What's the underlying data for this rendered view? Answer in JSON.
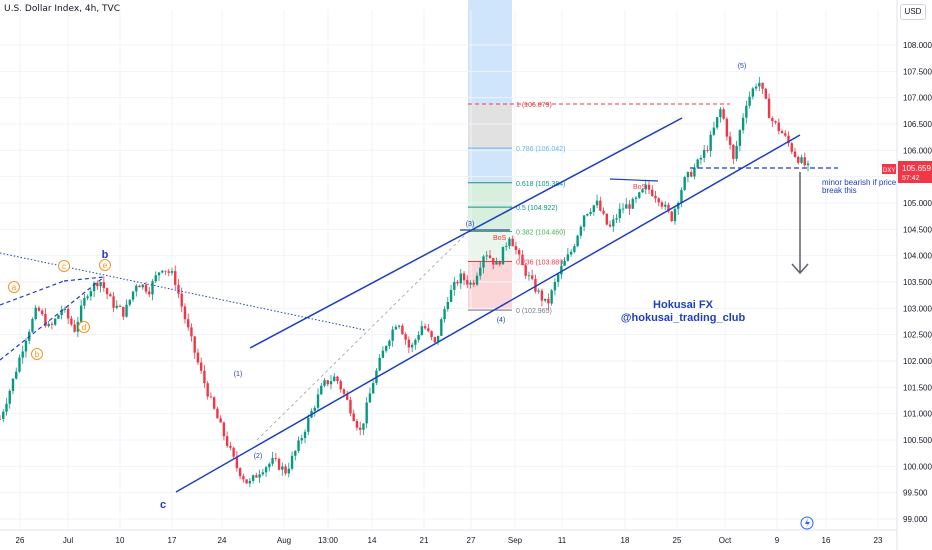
{
  "header": {
    "title": "U.S. Dollar Index, 4h, TVC",
    "currency_button": "USD"
  },
  "chart_data": {
    "type": "candlestick",
    "title": "U.S. Dollar Index, 4h, TVC",
    "ylim": [
      98.8,
      108.6
    ],
    "y_ticks": [
      "108.000",
      "107.500",
      "107.000",
      "106.500",
      "106.000",
      "105.500",
      "105.000",
      "104.500",
      "104.000",
      "103.500",
      "103.000",
      "102.500",
      "102.000",
      "101.500",
      "101.000",
      "100.500",
      "100.000",
      "99.500",
      "99.000"
    ],
    "x_ticks": [
      "26",
      "Jul",
      "10",
      "17",
      "24",
      "Aug",
      "13:00",
      "14",
      "21",
      "27",
      "Sep",
      "11",
      "18",
      "25",
      "Oct",
      "9",
      "16",
      "23"
    ],
    "price_label": {
      "symbol": "DXY",
      "value": "105.659",
      "countdown": "57:42"
    },
    "price_path": [
      100.9,
      101.6,
      102.4,
      103.0,
      102.6,
      103.0,
      102.6,
      103.3,
      103.55,
      103.1,
      102.9,
      103.5,
      103.35,
      103.8,
      103.6,
      102.7,
      101.9,
      101.2,
      100.6,
      100.0,
      99.65,
      99.95,
      100.1,
      99.9,
      100.4,
      101.0,
      101.55,
      101.7,
      101.2,
      100.65,
      101.6,
      102.3,
      102.8,
      102.2,
      102.7,
      102.3,
      103.2,
      103.6,
      103.45,
      104.1,
      103.8,
      104.4,
      103.8,
      103.4,
      103.05,
      103.7,
      104.1,
      104.8,
      105.0,
      104.5,
      104.9,
      105.0,
      105.3,
      105.1,
      104.7,
      105.4,
      105.7,
      106.1,
      106.8,
      105.8,
      106.9,
      107.35,
      106.6,
      106.3,
      105.9,
      105.66
    ],
    "fib_levels": [
      {
        "label": "1 (106.879)",
        "price": 106.879
      },
      {
        "label": "0.786 (106.042)",
        "price": 106.042
      },
      {
        "label": "0.618 (105.384)",
        "price": 105.384
      },
      {
        "label": "0.5 (104.922)",
        "price": 104.922
      },
      {
        "label": "0.382 (104.460)",
        "price": 104.46
      },
      {
        "label": "0.236 (103.889)",
        "price": 103.889
      },
      {
        "label": "0 (102.965)",
        "price": 102.965
      }
    ],
    "wave_labels": [
      "a",
      "b",
      "c",
      "d",
      "e",
      "b",
      "c",
      "(1)",
      "(2)",
      "(3)",
      "(4)",
      "(5)"
    ],
    "annotations": {
      "bos": "BoS",
      "bearish_note_line1": "minor bearish if price",
      "bearish_note_line2": "break this",
      "watermark_line1": "Hokusai FX",
      "watermark_line2": "@hokusai_trading_club"
    },
    "colors": {
      "up": "#089981",
      "down": "#f23645",
      "channel": "#1e3fbf",
      "wave_orange": "#f7931e",
      "fib_red": "#f23645"
    }
  }
}
